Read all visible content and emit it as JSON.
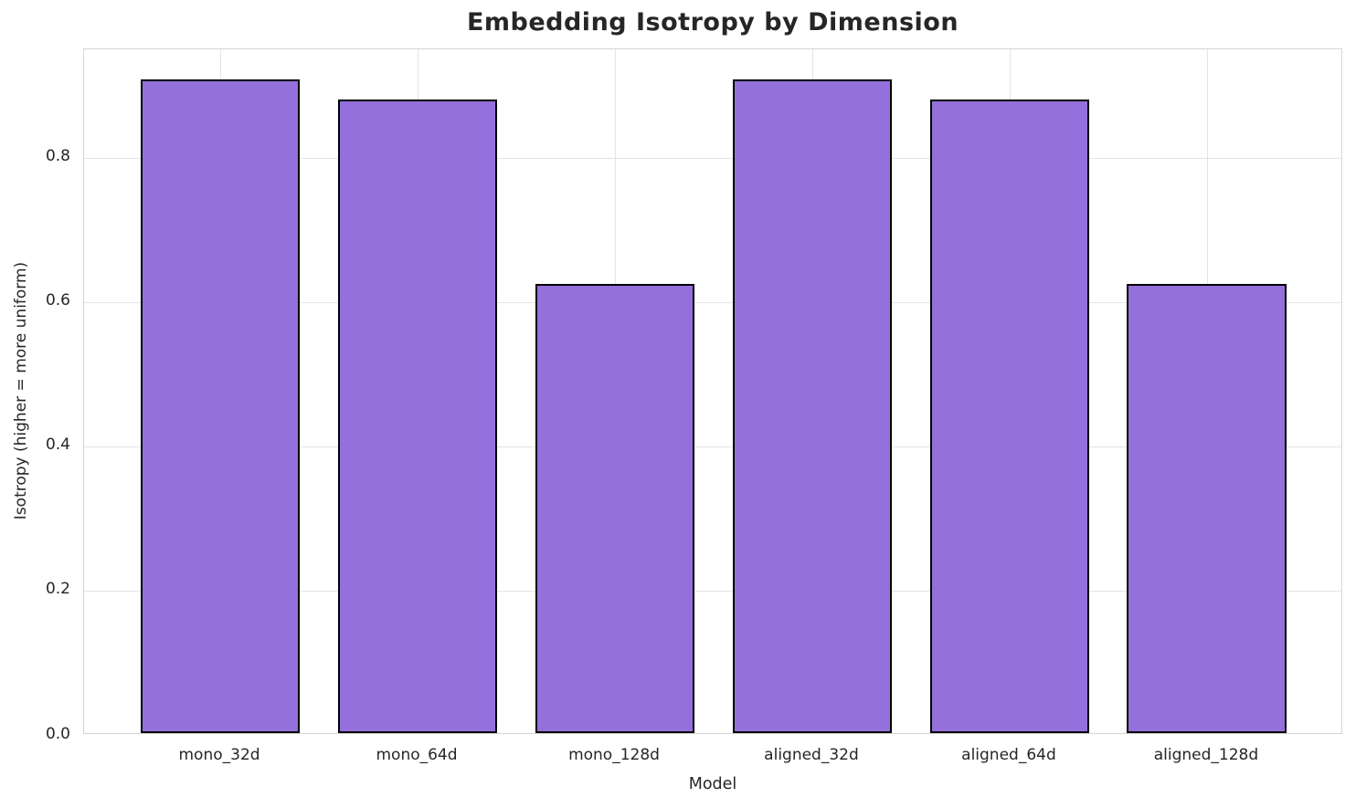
{
  "chart_data": {
    "type": "bar",
    "title": "Embedding Isotropy by Dimension",
    "xlabel": "Model",
    "ylabel": "Isotropy (higher = more uniform)",
    "categories": [
      "mono_32d",
      "mono_64d",
      "mono_128d",
      "aligned_32d",
      "aligned_64d",
      "aligned_128d"
    ],
    "values": [
      0.906,
      0.878,
      0.622,
      0.906,
      0.878,
      0.622
    ],
    "ylim": [
      0,
      0.95
    ],
    "yticks": [
      "0.0",
      "0.2",
      "0.4",
      "0.6",
      "0.8"
    ],
    "xlim": [
      -0.69,
      5.69
    ],
    "bar_width_units": 0.81,
    "grid": true,
    "legend": "none",
    "bar_color": "#9370DB",
    "bar_edge_color": "#000000",
    "grid_color": "#e4e4e4",
    "spine_color": "#d5d5d5",
    "text_color": "#262626"
  }
}
